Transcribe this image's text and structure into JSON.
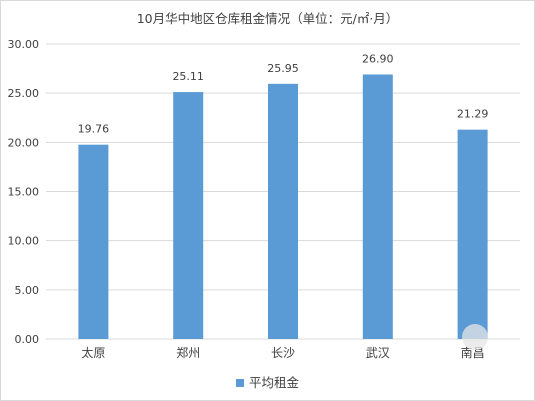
{
  "chart_data": {
    "type": "bar",
    "title": "10月华中地区仓库租金情况（单位：元/㎡·月）",
    "categories": [
      "太原",
      "郑州",
      "长沙",
      "武汉",
      "南昌"
    ],
    "series": [
      {
        "name": "平均租金",
        "values": [
          19.76,
          25.11,
          25.95,
          26.9,
          21.29
        ]
      }
    ],
    "data_labels": [
      "19.76",
      "25.11",
      "25.95",
      "26.90",
      "21.29"
    ],
    "y_ticks": [
      "0.00",
      "5.00",
      "10.00",
      "15.00",
      "20.00",
      "25.00",
      "30.00"
    ],
    "ylim": [
      0,
      30
    ],
    "grid": true,
    "legend_position": "bottom",
    "colors": {
      "bar": "#5b9bd5",
      "grid": "#d9d9d9",
      "text": "#404040"
    }
  }
}
